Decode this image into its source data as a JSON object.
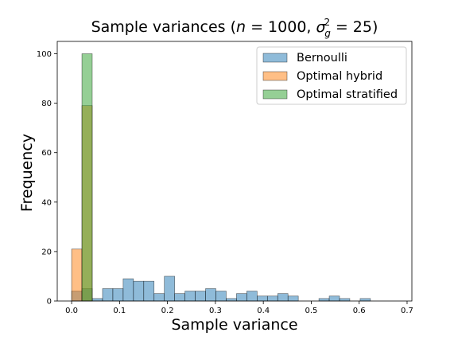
{
  "chart_data": {
    "type": "bar",
    "title_plain": "Sample variances (",
    "title_n": "n",
    "title_eq_n": " = 1000, ",
    "title_sigma": "σ",
    "title_sub": "g",
    "title_sup": "2",
    "title_eq_val": " = 25)",
    "xlabel": "Sample variance",
    "ylabel": "Frequency",
    "xlim": [
      -0.03,
      0.71
    ],
    "ylim": [
      0,
      105
    ],
    "xticks": [
      0.0,
      0.1,
      0.2,
      0.3,
      0.4,
      0.5,
      0.6,
      0.7
    ],
    "xtick_labels": [
      "0.0",
      "0.1",
      "0.2",
      "0.3",
      "0.4",
      "0.5",
      "0.6",
      "0.7"
    ],
    "yticks": [
      0,
      20,
      40,
      60,
      80,
      100
    ],
    "ytick_labels": [
      "0",
      "20",
      "40",
      "60",
      "80",
      "100"
    ],
    "legend_position": "top-right",
    "series": [
      {
        "name": "Bernoulli",
        "color": "#1f77b4",
        "bin_width": 0.0215,
        "bins": [
          {
            "x0": 0.0,
            "count": 4
          },
          {
            "x0": 0.0215,
            "count": 5
          },
          {
            "x0": 0.043,
            "count": 1
          },
          {
            "x0": 0.0645,
            "count": 5
          },
          {
            "x0": 0.086,
            "count": 5
          },
          {
            "x0": 0.1075,
            "count": 9
          },
          {
            "x0": 0.129,
            "count": 8
          },
          {
            "x0": 0.1505,
            "count": 8
          },
          {
            "x0": 0.172,
            "count": 3
          },
          {
            "x0": 0.1935,
            "count": 10
          },
          {
            "x0": 0.215,
            "count": 3
          },
          {
            "x0": 0.2365,
            "count": 4
          },
          {
            "x0": 0.258,
            "count": 4
          },
          {
            "x0": 0.2795,
            "count": 5
          },
          {
            "x0": 0.301,
            "count": 4
          },
          {
            "x0": 0.3225,
            "count": 1
          },
          {
            "x0": 0.344,
            "count": 3
          },
          {
            "x0": 0.3655,
            "count": 4
          },
          {
            "x0": 0.387,
            "count": 2
          },
          {
            "x0": 0.4085,
            "count": 2
          },
          {
            "x0": 0.43,
            "count": 3
          },
          {
            "x0": 0.4515,
            "count": 2
          },
          {
            "x0": 0.516,
            "count": 1
          },
          {
            "x0": 0.5375,
            "count": 2
          },
          {
            "x0": 0.559,
            "count": 1
          },
          {
            "x0": 0.602,
            "count": 1
          }
        ]
      },
      {
        "name": "Optimal hybrid",
        "color": "#ff7f0e",
        "bin_width": 0.0215,
        "bins": [
          {
            "x0": 0.0,
            "count": 21
          },
          {
            "x0": 0.0215,
            "count": 79
          }
        ]
      },
      {
        "name": "Optimal stratified",
        "color": "#2ca02c",
        "bin_width": 0.0215,
        "bins": [
          {
            "x0": 0.0215,
            "count": 100
          }
        ]
      }
    ]
  }
}
